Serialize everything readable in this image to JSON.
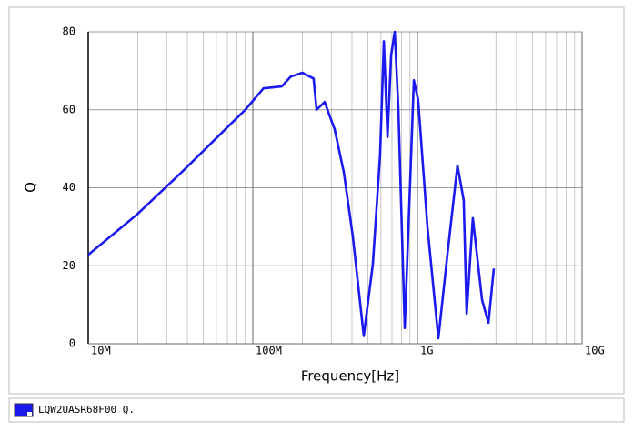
{
  "chart_data": {
    "type": "line",
    "xlabel": "Frequency[Hz]",
    "ylabel": "Q",
    "xscale": "log",
    "grid": true,
    "xlim": [
      10000000,
      10000000000
    ],
    "ylim": [
      0,
      80
    ],
    "xticks": [
      {
        "value": 10000000,
        "label": "10M"
      },
      {
        "value": 100000000,
        "label": "100M"
      },
      {
        "value": 1000000000,
        "label": "1G"
      },
      {
        "value": 10000000000,
        "label": "10G"
      }
    ],
    "yticks": [
      0,
      20,
      40,
      60,
      80
    ],
    "series": [
      {
        "name": "LQW2UASR68F00 Q.",
        "color": "#1a1aee",
        "x": [
          10000000,
          19600000,
          37000000,
          70000000,
          90000000,
          116000000,
          150000000,
          170000000,
          200000000,
          234000000,
          244000000,
          273000000,
          314000000,
          357000000,
          405000000,
          472000000,
          536000000,
          593000000,
          625000000,
          658000000,
          692000000,
          728000000,
          766000000,
          837000000,
          903000000,
          951000000,
          1010000000,
          1150000000,
          1340000000,
          1520000000,
          1750000000,
          1910000000,
          1990000000,
          2170000000,
          2470000000,
          2700000000,
          2910000000
        ],
        "values": [
          22.8,
          33,
          44,
          55.5,
          60,
          65.5,
          66,
          68.5,
          69.5,
          68,
          60,
          62,
          55,
          44,
          27.5,
          2,
          20.5,
          48.5,
          77.6,
          53,
          74,
          80,
          60,
          4,
          41.5,
          67.6,
          62.5,
          30,
          1.4,
          22.8,
          45.7,
          36.8,
          7.7,
          32.2,
          11.2,
          5.4,
          19.3
        ]
      }
    ]
  }
}
